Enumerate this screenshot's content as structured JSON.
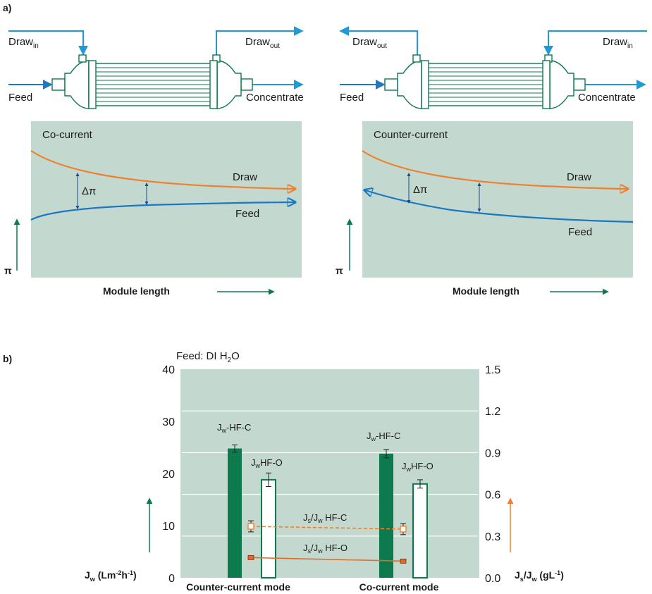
{
  "panel_a": {
    "label": "a)",
    "left_module": {
      "draw_in": {
        "main": "Draw",
        "sub": "in"
      },
      "draw_out": {
        "main": "Draw",
        "sub": "out"
      },
      "feed": "Feed",
      "concentrate": "Concentrate"
    },
    "right_module": {
      "draw_in": {
        "main": "Draw",
        "sub": "in"
      },
      "draw_out": {
        "main": "Draw",
        "sub": "out"
      },
      "feed": "Feed",
      "concentrate": "Concentrate"
    },
    "co_current_plot": {
      "title": "Co-current",
      "draw_label": "Draw",
      "feed_label": "Feed",
      "delta": "Δπ",
      "y_axis": "π",
      "x_axis": "Module length"
    },
    "counter_current_plot": {
      "title": "Counter-current",
      "draw_label": "Draw",
      "feed_label": "Feed",
      "delta": "Δπ",
      "y_axis": "π",
      "x_axis": "Module length"
    },
    "colors": {
      "draw_stream": "#1e9bd7",
      "feed_stream": "#1f76c2",
      "module": "#0d7a4e",
      "plot_bg": "#c3d9cf",
      "draw_curve": "#f07f2e",
      "feed_curve": "#1a77c0",
      "axis_arrow": "#0d7a4e"
    }
  },
  "panel_b": {
    "label": "b)",
    "feed_note": {
      "main": "Feed: DI H",
      "sub": "2",
      "tail": "O"
    },
    "left_axis": {
      "ticks": [
        "0",
        "10",
        "20",
        "30",
        "40"
      ],
      "title": {
        "main": "J",
        "sub": "w",
        "tail": " (Lm",
        "sup1": "-2",
        "mid": "h",
        "sup2": "-1",
        "end": ")"
      }
    },
    "right_axis": {
      "ticks": [
        "0.0",
        "0.3",
        "0.6",
        "0.9",
        "1.2",
        "1.5"
      ],
      "title": {
        "j1": "J",
        "s1": "s",
        "slash": "/J",
        "s2": "w",
        "tail": " (gL",
        "sup": "-1",
        "end": ")"
      }
    },
    "categories": [
      "Counter-current mode",
      "Co-current mode"
    ],
    "bar_labels": {
      "hfc": {
        "main": "J",
        "sub": "w",
        "tail": "-HF-C"
      },
      "hfo": {
        "main": "J",
        "sub": "w",
        "tail": "HF-O"
      }
    },
    "line_labels": {
      "hfc": {
        "j": "J",
        "s": "s",
        "slash": "/J",
        "w": "w",
        "tail": " HF-C"
      },
      "hfo": {
        "j": "J",
        "s": "s",
        "slash": "/J",
        "w": "w",
        "tail": " HF-O"
      }
    },
    "colors": {
      "bg": "#c3d9cf",
      "hfc_bar": "#0d7a4e",
      "hfo_bar": "#ffffff",
      "hfc_line": "#f07f2e",
      "hfo_line": "#e06b2a",
      "right_arrow": "#f07f2e"
    }
  },
  "chart_data": {
    "type": "bar",
    "categories": [
      "Counter-current mode",
      "Co-current mode"
    ],
    "series": [
      {
        "name": "Jw-HF-C",
        "axis": "left",
        "values": [
          24.8,
          23.8
        ],
        "errors": [
          0.7,
          0.8
        ]
      },
      {
        "name": "JwHF-O",
        "axis": "left",
        "values": [
          18.8,
          18.0
        ],
        "errors": [
          1.3,
          0.8
        ]
      },
      {
        "name": "Js/Jw HF-C",
        "axis": "right",
        "style": "dashed-line-open-square",
        "values": [
          0.37,
          0.35
        ],
        "errors": [
          0.04,
          0.04
        ]
      },
      {
        "name": "Js/Jw HF-O",
        "axis": "right",
        "style": "solid-line-filled-square",
        "values": [
          0.145,
          0.12
        ],
        "errors": [
          0.01,
          0.01
        ]
      }
    ],
    "left_ylim": [
      0,
      40
    ],
    "right_ylim": [
      0,
      1.5
    ],
    "ylabel": "Jw (Lm-2h-1)",
    "y2label": "Js/Jw (gL-1)",
    "title": "Feed: DI H2O"
  }
}
